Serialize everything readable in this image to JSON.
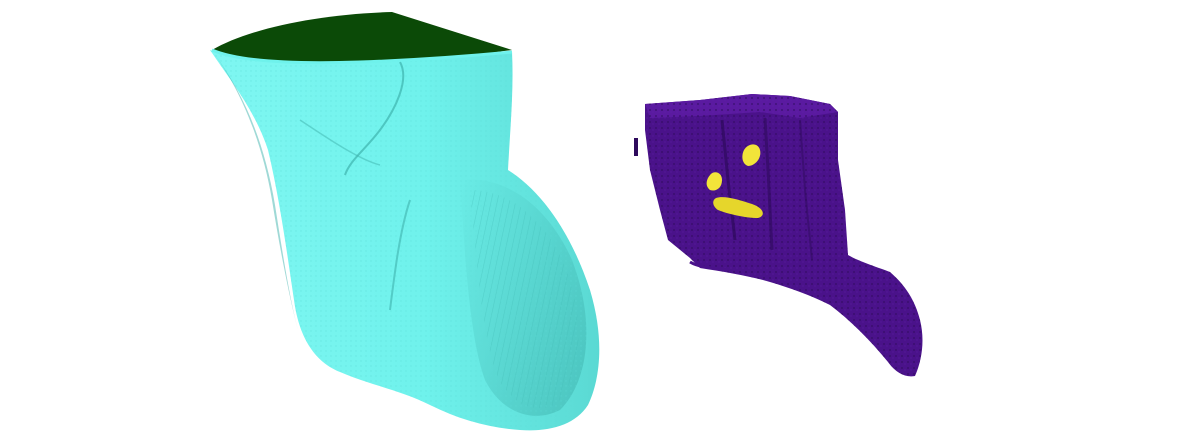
{
  "scene": {
    "background": "#ffffff",
    "objects": [
      {
        "name": "cyan-organ-mesh",
        "body_color": "#6ff2ec",
        "shadow_color": "#3fb3ae",
        "cap_color": "#0b4a07"
      },
      {
        "name": "purple-tissue-mesh",
        "body_color": "#4a128a",
        "shadow_color": "#2e0a5c",
        "highlight_colors": [
          "#f2e43a",
          "#e6d62b"
        ]
      }
    ]
  }
}
